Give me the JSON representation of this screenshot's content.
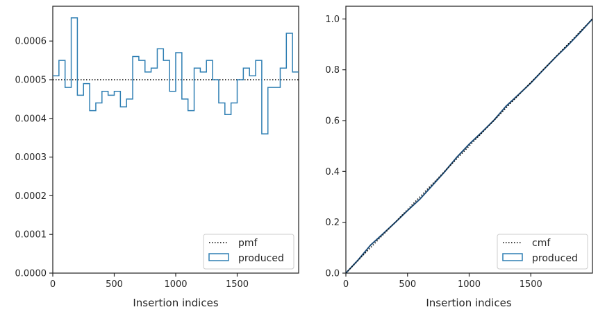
{
  "colors": {
    "hist": "#2f7fb3",
    "reference": "#000000",
    "cmf_line": "#1f4e79",
    "axis": "#262626"
  },
  "chart_data": [
    {
      "type": "histogram-step",
      "xlabel": "Insertion indices",
      "ylabel": "",
      "xlim": [
        0,
        2000
      ],
      "ylim": [
        0,
        0.00069
      ],
      "xticks": [
        0,
        500,
        1000,
        1500
      ],
      "xtick_labels": [
        "0",
        "500",
        "1000",
        "1500"
      ],
      "yticks": [
        0,
        0.0001,
        0.0002,
        0.0003,
        0.0004,
        0.0005,
        0.0006
      ],
      "ytick_labels": [
        "0.0000",
        "0.0001",
        "0.0002",
        "0.0003",
        "0.0004",
        "0.0005",
        "0.0006"
      ],
      "reference_line": {
        "name": "pmf",
        "y": 0.0005
      },
      "bin_width": 50,
      "series": [
        {
          "name": "produced",
          "values": [
            0.00051,
            0.00055,
            0.00048,
            0.00066,
            0.00046,
            0.00049,
            0.00042,
            0.00044,
            0.00047,
            0.00046,
            0.00047,
            0.00043,
            0.00045,
            0.00056,
            0.00055,
            0.00052,
            0.00053,
            0.00058,
            0.00055,
            0.00047,
            0.00057,
            0.00045,
            0.00042,
            0.00053,
            0.00052,
            0.00055,
            0.0005,
            0.00044,
            0.00041,
            0.00044,
            0.0005,
            0.00053,
            0.00051,
            0.00055,
            0.00036,
            0.00048,
            0.00048,
            0.00053,
            0.00062,
            0.00052
          ]
        }
      ],
      "legend": {
        "position": "lower-right",
        "entries": [
          "pmf",
          "produced"
        ]
      }
    },
    {
      "type": "line",
      "xlabel": "Insertion indices",
      "ylabel": "",
      "xlim": [
        0,
        2000
      ],
      "ylim": [
        0,
        1.05
      ],
      "xticks": [
        0,
        500,
        1000,
        1500
      ],
      "xtick_labels": [
        "0",
        "500",
        "1000",
        "1500"
      ],
      "yticks": [
        0,
        0.2,
        0.4,
        0.6,
        0.8,
        1.0
      ],
      "ytick_labels": [
        "0.0",
        "0.2",
        "0.4",
        "0.6",
        "0.8",
        "1.0"
      ],
      "reference_line": {
        "name": "cmf",
        "points": [
          [
            0,
            0
          ],
          [
            2000,
            1.0
          ]
        ]
      },
      "series": [
        {
          "name": "produced",
          "x": [
            0,
            100,
            200,
            300,
            400,
            500,
            600,
            700,
            800,
            900,
            1000,
            1100,
            1200,
            1300,
            1400,
            1500,
            1600,
            1700,
            1800,
            1900,
            2000
          ],
          "y": [
            0,
            0.052,
            0.11,
            0.154,
            0.199,
            0.246,
            0.291,
            0.344,
            0.398,
            0.456,
            0.507,
            0.553,
            0.601,
            0.657,
            0.702,
            0.748,
            0.799,
            0.849,
            0.896,
            0.947,
            1.0
          ]
        }
      ],
      "legend": {
        "position": "lower-right",
        "entries": [
          "cmf",
          "produced"
        ]
      }
    }
  ]
}
